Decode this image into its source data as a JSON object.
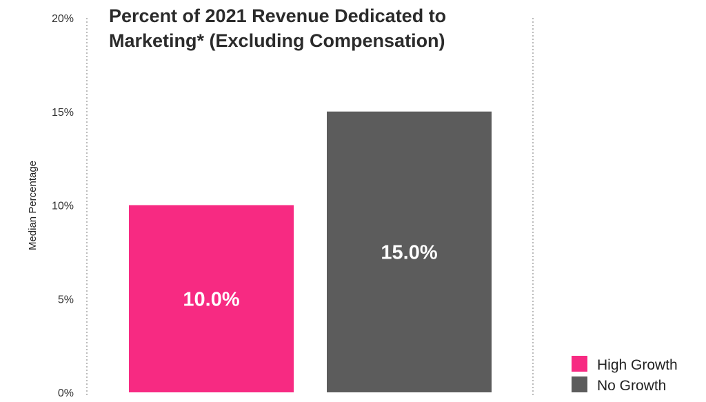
{
  "chart_data": {
    "type": "bar",
    "title_lines": [
      "Percent of 2021 Revenue Dedicated to",
      "Marketing* (Excluding Compensation)"
    ],
    "xlabel": "",
    "ylabel": "Median Percentage",
    "ylim": [
      0,
      20
    ],
    "yticks": [
      0,
      5,
      10,
      15,
      20
    ],
    "ytick_labels": [
      "0%",
      "5%",
      "10%",
      "15%",
      "20%"
    ],
    "grid": false,
    "legend_position": "bottom-right",
    "categories": [
      "High Growth",
      "No Growth"
    ],
    "values": [
      10.0,
      15.0
    ],
    "data_labels": [
      "10.0%",
      "15.0%"
    ],
    "colors": [
      "#f72a82",
      "#5c5c5c"
    ],
    "legend": [
      "High Growth",
      "No Growth"
    ]
  }
}
